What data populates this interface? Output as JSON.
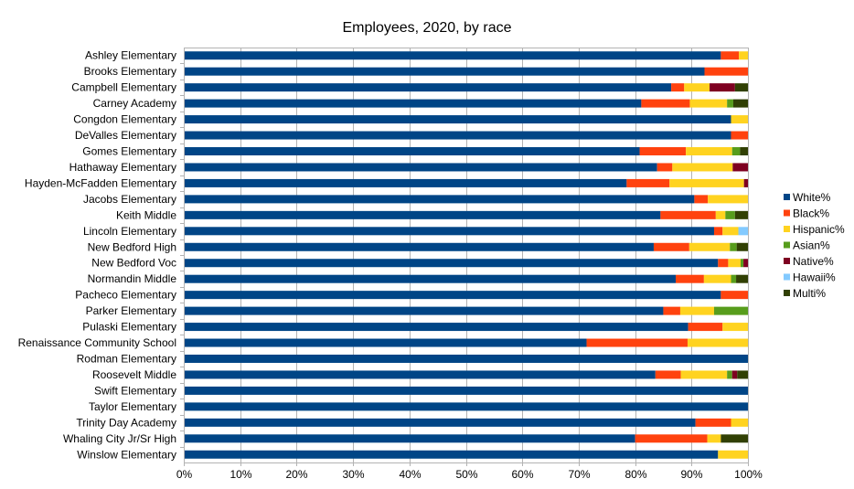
{
  "chart_data": {
    "type": "bar",
    "orientation": "horizontal",
    "stacked": "percent",
    "title": "Employees, 2020, by race",
    "xlabel": "",
    "ylabel": "",
    "xlim": [
      0,
      100
    ],
    "x_ticks": [
      "0%",
      "10%",
      "20%",
      "30%",
      "40%",
      "50%",
      "60%",
      "70%",
      "80%",
      "90%",
      "100%"
    ],
    "grid": "vertical major gridlines",
    "legend_position": "right",
    "categories": [
      "Ashley Elementary",
      "Brooks Elementary",
      "Campbell Elementary",
      "Carney Academy",
      "Congdon Elementary",
      "DeValles Elementary",
      "Gomes Elementary",
      "Hathaway Elementary",
      "Hayden-McFadden Elementary",
      "Jacobs Elementary",
      "Keith Middle",
      "Lincoln Elementary",
      "New Bedford High",
      "New Bedford Voc",
      "Normandin Middle",
      "Pacheco Elementary",
      "Parker Elementary",
      "Pulaski Elementary",
      "Renaissance Community School",
      "Rodman Elementary",
      "Roosevelt Middle",
      "Swift Elementary",
      "Taylor Elementary",
      "Trinity Day Academy",
      "Whaling City Jr/Sr High",
      "Winslow Elementary"
    ],
    "series": [
      {
        "name": "White%",
        "color": "#004586",
        "values": [
          95.2,
          92.3,
          86.4,
          81.1,
          97.0,
          97.0,
          80.8,
          83.9,
          78.5,
          90.5,
          84.5,
          94.0,
          83.3,
          94.7,
          87.2,
          95.2,
          85.0,
          89.4,
          71.4,
          100,
          83.6,
          100,
          100,
          90.7,
          80.0,
          94.7
        ]
      },
      {
        "name": "Black%",
        "color": "#ff420e",
        "values": [
          3.2,
          7.7,
          2.3,
          8.6,
          0,
          3.0,
          8.2,
          2.7,
          7.6,
          2.4,
          9.8,
          1.5,
          6.3,
          1.8,
          5.0,
          4.8,
          3.0,
          6.1,
          17.9,
          0,
          4.5,
          0,
          0,
          6.3,
          12.8,
          0
        ]
      },
      {
        "name": "Hispanic%",
        "color": "#ffd320",
        "values": [
          1.6,
          0,
          4.5,
          6.6,
          3.0,
          0,
          8.2,
          10.7,
          13.2,
          7.1,
          1.7,
          2.8,
          7.2,
          2.2,
          4.8,
          0,
          6.0,
          4.5,
          10.7,
          0,
          8.2,
          0,
          0,
          3.0,
          2.4,
          5.3
        ]
      },
      {
        "name": "Asian%",
        "color": "#579d1c",
        "values": [
          0,
          0,
          0,
          1.1,
          0,
          0,
          1.4,
          0,
          0,
          0,
          1.7,
          0,
          1.2,
          0.5,
          0.9,
          0,
          6.0,
          0,
          0,
          0,
          0.9,
          0,
          0,
          0,
          0,
          0
        ]
      },
      {
        "name": "Native%",
        "color": "#7e0021",
        "values": [
          0,
          0,
          4.5,
          0,
          0,
          0,
          0,
          2.7,
          0.7,
          0,
          0,
          0,
          0,
          0.8,
          0,
          0,
          0,
          0,
          0,
          0,
          0.9,
          0,
          0,
          0,
          0,
          0
        ]
      },
      {
        "name": "Hawaii%",
        "color": "#83caff",
        "values": [
          0,
          0,
          0,
          0,
          0,
          0,
          0,
          0,
          0,
          0,
          0,
          1.7,
          0,
          0,
          0,
          0,
          0,
          0,
          0,
          0,
          0,
          0,
          0,
          0,
          0,
          0
        ]
      },
      {
        "name": "Multi%",
        "color": "#314004",
        "values": [
          0,
          0,
          2.3,
          2.6,
          0,
          0,
          1.4,
          0,
          0,
          0,
          2.3,
          0,
          2.0,
          0,
          2.1,
          0,
          0,
          0,
          0,
          0,
          1.9,
          0,
          0,
          0,
          4.8,
          0
        ]
      }
    ]
  }
}
